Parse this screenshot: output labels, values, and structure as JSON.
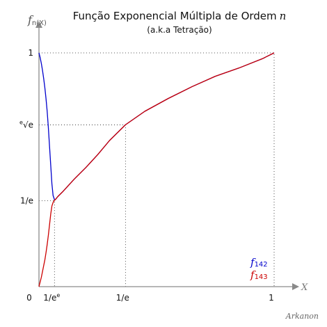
{
  "chart_data": {
    "type": "line",
    "title": "Função Exponencial Múltipla de Ordem",
    "title_var": "n",
    "subtitle": "(a.k.a Tetração)",
    "ylabel": "f",
    "ylabel_sub": "n(X)",
    "xlabel": "X",
    "credit": "Arkanon",
    "xlim": [
      0,
      1.02
    ],
    "ylim": [
      0,
      1.1
    ],
    "x_ticks": [
      {
        "value": 0,
        "label": "0"
      },
      {
        "value": 0.06599,
        "label": "1/e",
        "sup": "e"
      },
      {
        "value": 0.36788,
        "label": "1/e"
      },
      {
        "value": 1,
        "label": "1"
      }
    ],
    "y_ticks": [
      {
        "value": 0.36788,
        "label": "1/e"
      },
      {
        "value": 0.6922,
        "label": "√e",
        "root_index": "e"
      },
      {
        "value": 1,
        "label": "1"
      }
    ],
    "guides": [
      {
        "x": 1,
        "y": 1
      },
      {
        "x": 0.36788,
        "y": 0.6922
      },
      {
        "x": 0.06599,
        "y": 0.36788
      }
    ],
    "series": [
      {
        "name": "f",
        "name_sub": "142",
        "color": "#0000cc",
        "x": [
          0.0,
          0.005,
          0.01,
          0.015,
          0.02,
          0.025,
          0.03,
          0.035,
          0.04,
          0.045,
          0.05,
          0.055,
          0.06,
          0.065,
          0.066,
          0.07,
          0.08,
          0.1,
          0.15,
          0.2,
          0.25,
          0.3,
          0.36788,
          0.45,
          0.55,
          0.65,
          0.75,
          0.85,
          0.95,
          1.0
        ],
        "values": [
          1.0,
          0.98,
          0.955,
          0.925,
          0.89,
          0.85,
          0.805,
          0.75,
          0.68,
          0.6,
          0.52,
          0.44,
          0.39,
          0.375,
          0.37,
          0.373,
          0.385,
          0.405,
          0.46,
          0.51,
          0.565,
          0.625,
          0.6922,
          0.75,
          0.805,
          0.855,
          0.9,
          0.935,
          0.975,
          1.0
        ]
      },
      {
        "name": "f",
        "name_sub": "143",
        "color": "#cc0000",
        "x": [
          0.0,
          0.005,
          0.01,
          0.015,
          0.02,
          0.025,
          0.03,
          0.035,
          0.04,
          0.045,
          0.05,
          0.055,
          0.06,
          0.065,
          0.066,
          0.07,
          0.08,
          0.1,
          0.15,
          0.2,
          0.25,
          0.3,
          0.36788,
          0.45,
          0.55,
          0.65,
          0.75,
          0.85,
          0.95,
          1.0
        ],
        "values": [
          0.0,
          0.02,
          0.04,
          0.065,
          0.09,
          0.115,
          0.145,
          0.18,
          0.22,
          0.265,
          0.31,
          0.345,
          0.36,
          0.368,
          0.37,
          0.373,
          0.385,
          0.405,
          0.46,
          0.51,
          0.565,
          0.625,
          0.6922,
          0.75,
          0.805,
          0.855,
          0.9,
          0.935,
          0.975,
          1.0
        ]
      }
    ],
    "legend_position": "bottom-right",
    "grid": false
  }
}
